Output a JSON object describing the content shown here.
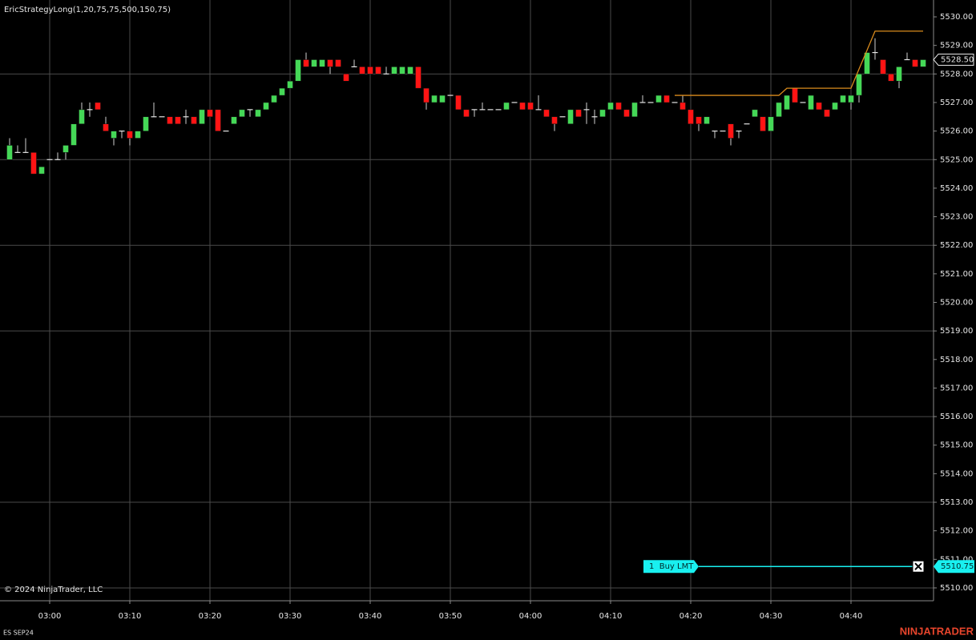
{
  "chart_data": {
    "type": "candlestick",
    "title": "EricStrategyLong(1,20,75,75,500,150,75)",
    "categories": [
      null,
      null,
      null,
      null,
      null,
      "03:00",
      null,
      null,
      null,
      null,
      null,
      null,
      null,
      null,
      null,
      "03:10",
      null,
      null,
      null,
      null,
      null,
      null,
      null,
      null,
      null,
      "03:20",
      null,
      null,
      null,
      null,
      null,
      null,
      null,
      null,
      null,
      "03:30",
      null,
      null,
      null,
      null,
      null,
      null,
      null,
      null,
      null,
      "03:40",
      null,
      null,
      null,
      null,
      null,
      null,
      null,
      null,
      null,
      "03:50",
      null,
      null,
      null,
      null,
      null,
      null,
      null,
      null,
      null,
      "04:00",
      null,
      null,
      null,
      null,
      null,
      null,
      null,
      null,
      null,
      "04:10",
      null,
      null,
      null,
      null,
      null,
      null,
      null,
      null,
      null,
      "04:20",
      null,
      null,
      null,
      null,
      null,
      null,
      null,
      null,
      null,
      "04:30",
      null,
      null,
      null,
      null,
      null,
      null,
      null,
      null,
      null,
      "04:40",
      null,
      null,
      null,
      null,
      null,
      null,
      null,
      null,
      null
    ],
    "open": [
      5525,
      5525.25,
      5525.25,
      5525.25,
      5524.5,
      5525,
      5525,
      5525.25,
      5525.5,
      5526.25,
      5526.75,
      5527,
      5526.25,
      5525.75,
      5526,
      5526,
      5525.75,
      5526,
      5526.5,
      5526.5,
      5526.5,
      5526.5,
      5526.5,
      5526.5,
      5526.25,
      5526.75,
      5526.75,
      5526,
      5526.25,
      5526.5,
      5526.75,
      5526.5,
      5526.75,
      5527,
      5527.25,
      5527.5,
      5527.75,
      5528.5,
      5528.25,
      5528.25,
      5528.5,
      5528.5,
      5528,
      5528.25,
      5528.25,
      5528.25,
      5528.25,
      5528,
      5528,
      5528,
      5528,
      5528.25,
      5527.5,
      5527,
      5527,
      5527.25,
      5527.25,
      5526.75,
      5526.75,
      5526.75,
      5526.75,
      5526.75,
      5526.75,
      5527,
      5527,
      5527,
      5526.75,
      5526.75,
      5526.5,
      5526.5,
      5526.25,
      5526.75,
      5526.75,
      5526.5,
      5526.5,
      5526.75,
      5527,
      5526.75,
      5526.5,
      5527,
      5527,
      5527,
      5527.25,
      5527,
      5527,
      5526.75,
      5526.5,
      5526.25,
      5526,
      5526,
      5526.25,
      5526,
      5526.25,
      5526.5,
      5526.5,
      5526,
      5526.5,
      5526.75,
      5527.5,
      5527,
      5526.75,
      5527,
      5526.75,
      5526.75,
      5527,
      5527,
      5527.25,
      5528,
      5528.75,
      5528.5,
      5528,
      5527.75,
      5528.5,
      5528.5,
      5528.25
    ],
    "high": [
      5525.75,
      5525.5,
      5525.75,
      5525.25,
      5524.75,
      5525,
      5525.25,
      5525.5,
      5526.25,
      5527,
      5527,
      5527,
      5526.5,
      5526,
      5526,
      5526,
      5526,
      5526.5,
      5527,
      5526.5,
      5526.5,
      5526.5,
      5526.75,
      5526.5,
      5526.75,
      5526.75,
      5526.75,
      5526,
      5526.5,
      5526.75,
      5526.75,
      5526.75,
      5527,
      5527.25,
      5527.5,
      5527.75,
      5528.5,
      5528.75,
      5528.5,
      5528.5,
      5528.5,
      5528.5,
      5528,
      5528.5,
      5528.25,
      5528.25,
      5528.25,
      5528.25,
      5528.25,
      5528.25,
      5528.25,
      5528.25,
      5527.5,
      5527.25,
      5527.25,
      5527.25,
      5527.25,
      5526.75,
      5526.75,
      5527,
      5526.75,
      5526.75,
      5527,
      5527,
      5527,
      5527,
      5527.25,
      5526.75,
      5526.5,
      5526.5,
      5526.75,
      5526.75,
      5527,
      5526.75,
      5526.75,
      5527,
      5527,
      5526.75,
      5527,
      5527.25,
      5527,
      5527.25,
      5527.25,
      5527,
      5527.25,
      5526.75,
      5526.5,
      5526.5,
      5526,
      5526,
      5526.25,
      5526,
      5526.25,
      5526.75,
      5526.5,
      5526.5,
      5527,
      5527.25,
      5527.5,
      5527,
      5527.25,
      5527,
      5526.75,
      5527,
      5527.25,
      5527.25,
      5528,
      5528.75,
      5529.25,
      5528.5,
      5528,
      5528.25,
      5528.75,
      5528.5,
      5528.5
    ],
    "low": [
      5525,
      5525.25,
      5525.25,
      5524.5,
      5524.5,
      5525,
      5525,
      5525,
      5525.5,
      5526.25,
      5526.5,
      5526.75,
      5526,
      5525.5,
      5525.75,
      5525.5,
      5525.75,
      5526,
      5526.5,
      5526.5,
      5526.25,
      5526.25,
      5526.25,
      5526.25,
      5526.25,
      5526.5,
      5526,
      5526,
      5526.25,
      5526.5,
      5526.5,
      5526.5,
      5526.75,
      5527,
      5527.25,
      5527.5,
      5527.75,
      5528.25,
      5528.25,
      5528.25,
      5528,
      5528.25,
      5527.75,
      5528.25,
      5528,
      5528,
      5528,
      5528,
      5528,
      5528,
      5528,
      5527.5,
      5526.75,
      5527,
      5527,
      5527.25,
      5526.75,
      5526.5,
      5526.5,
      5526.75,
      5526.75,
      5526.75,
      5526.75,
      5527,
      5526.75,
      5526.75,
      5526.75,
      5526.5,
      5526,
      5526.5,
      5526.25,
      5526.5,
      5526.25,
      5526.25,
      5526.5,
      5526.75,
      5526.75,
      5526.5,
      5526.5,
      5527,
      5527,
      5527,
      5527,
      5527,
      5526.75,
      5526.25,
      5526,
      5526.25,
      5525.75,
      5526,
      5525.5,
      5525.75,
      5526.25,
      5526.5,
      5526,
      5526,
      5526.5,
      5526.75,
      5527,
      5527,
      5526.75,
      5526.75,
      5526.5,
      5526.75,
      5527,
      5526.75,
      5527,
      5528,
      5528.5,
      5528,
      5527.75,
      5527.5,
      5528.5,
      5528.25,
      5528.25
    ],
    "close": [
      5525.5,
      5525.25,
      5525.25,
      5524.5,
      5524.75,
      5525,
      5525,
      5525.5,
      5526.25,
      5526.75,
      5526.75,
      5526.75,
      5526,
      5526,
      5526,
      5525.75,
      5526,
      5526.5,
      5526.5,
      5526.5,
      5526.25,
      5526.25,
      5526.5,
      5526.25,
      5526.75,
      5526.5,
      5526,
      5526,
      5526.5,
      5526.75,
      5526.75,
      5526.75,
      5527,
      5527.25,
      5527.5,
      5527.75,
      5528.5,
      5528.25,
      5528.5,
      5528.5,
      5528.25,
      5528.25,
      5527.75,
      5528.25,
      5528,
      5528,
      5528,
      5528,
      5528.25,
      5528.25,
      5528.25,
      5527.5,
      5527,
      5527.25,
      5527.25,
      5527.25,
      5526.75,
      5526.5,
      5526.75,
      5526.75,
      5526.75,
      5526.75,
      5527,
      5527,
      5526.75,
      5526.75,
      5526.75,
      5526.5,
      5526.25,
      5526.5,
      5526.75,
      5526.5,
      5526.75,
      5526.5,
      5526.75,
      5527,
      5526.75,
      5526.5,
      5527,
      5527,
      5527,
      5527.25,
      5527,
      5527,
      5526.75,
      5526.25,
      5526.25,
      5526.5,
      5526,
      5526,
      5525.75,
      5526,
      5526.25,
      5526.75,
      5526,
      5526.5,
      5527,
      5527.25,
      5527,
      5527,
      5527.25,
      5526.75,
      5526.5,
      5527,
      5527.25,
      5527.25,
      5528,
      5528.75,
      5528.75,
      5528,
      5527.75,
      5528.25,
      5528.5,
      5528.25,
      5528.5
    ],
    "up_color": "#45d857",
    "down_color": "#ff1414",
    "doji_color": "#e6e6e6",
    "ylim": [
      5509.55,
      5530.59
    ],
    "yticks": [
      {
        "value": 5510,
        "label": "5510.00"
      },
      {
        "value": 5511,
        "label": "5511.00"
      },
      {
        "value": 5512,
        "label": "5512.00"
      },
      {
        "value": 5513,
        "label": "5513.00"
      },
      {
        "value": 5514,
        "label": "5514.00"
      },
      {
        "value": 5515,
        "label": "5515.00"
      },
      {
        "value": 5516,
        "label": "5516.00"
      },
      {
        "value": 5517,
        "label": "5517.00"
      },
      {
        "value": 5518,
        "label": "5518.00"
      },
      {
        "value": 5519,
        "label": "5519.00"
      },
      {
        "value": 5520,
        "label": "5520.00"
      },
      {
        "value": 5521,
        "label": "5521.00"
      },
      {
        "value": 5522,
        "label": "5522.00"
      },
      {
        "value": 5523,
        "label": "5523.00"
      },
      {
        "value": 5524,
        "label": "5524.00"
      },
      {
        "value": 5525,
        "label": "5525.00"
      },
      {
        "value": 5526,
        "label": "5526.00"
      },
      {
        "value": 5527,
        "label": "5527.00"
      },
      {
        "value": 5528,
        "label": "5528.00"
      },
      {
        "value": 5529,
        "label": "5529.00"
      },
      {
        "value": 5530,
        "label": "5530.00"
      }
    ],
    "grid": true,
    "overlay": {
      "color": "#d98a1c",
      "values": [
        null,
        null,
        null,
        null,
        null,
        null,
        null,
        null,
        null,
        null,
        null,
        null,
        null,
        null,
        null,
        null,
        null,
        null,
        null,
        null,
        null,
        null,
        null,
        null,
        null,
        null,
        null,
        null,
        null,
        null,
        null,
        null,
        null,
        null,
        null,
        null,
        null,
        null,
        null,
        null,
        null,
        null,
        null,
        null,
        null,
        null,
        null,
        null,
        null,
        null,
        null,
        null,
        null,
        null,
        null,
        null,
        null,
        null,
        null,
        null,
        null,
        null,
        null,
        null,
        null,
        null,
        null,
        null,
        null,
        null,
        null,
        null,
        null,
        null,
        null,
        null,
        null,
        null,
        null,
        null,
        null,
        null,
        null,
        5527.25,
        5527.25,
        5527.25,
        5527.25,
        5527.25,
        5527.25,
        5527.25,
        5527.25,
        5527.25,
        5527.25,
        5527.25,
        5527.25,
        5527.25,
        5527.25,
        5527.5,
        5527.5,
        5527.5,
        5527.5,
        5527.5,
        5527.5,
        5527.5,
        5527.5,
        5527.5,
        5528.17,
        5528.83,
        5529.5,
        5529.5,
        5529.5,
        5529.5,
        5529.5,
        5529.5,
        5529.5
      ]
    },
    "last_price": {
      "value": 5528.5,
      "label": "5528.50"
    },
    "order": {
      "label": "1  Buy LMT",
      "value": 5510.75,
      "value_label": "5510.75",
      "color": "#19f0f0"
    }
  },
  "footer": {
    "copyright": "© 2024 NinjaTrader, LLC",
    "instrument": "ES SEP24",
    "brand": "NINJATRADER"
  }
}
